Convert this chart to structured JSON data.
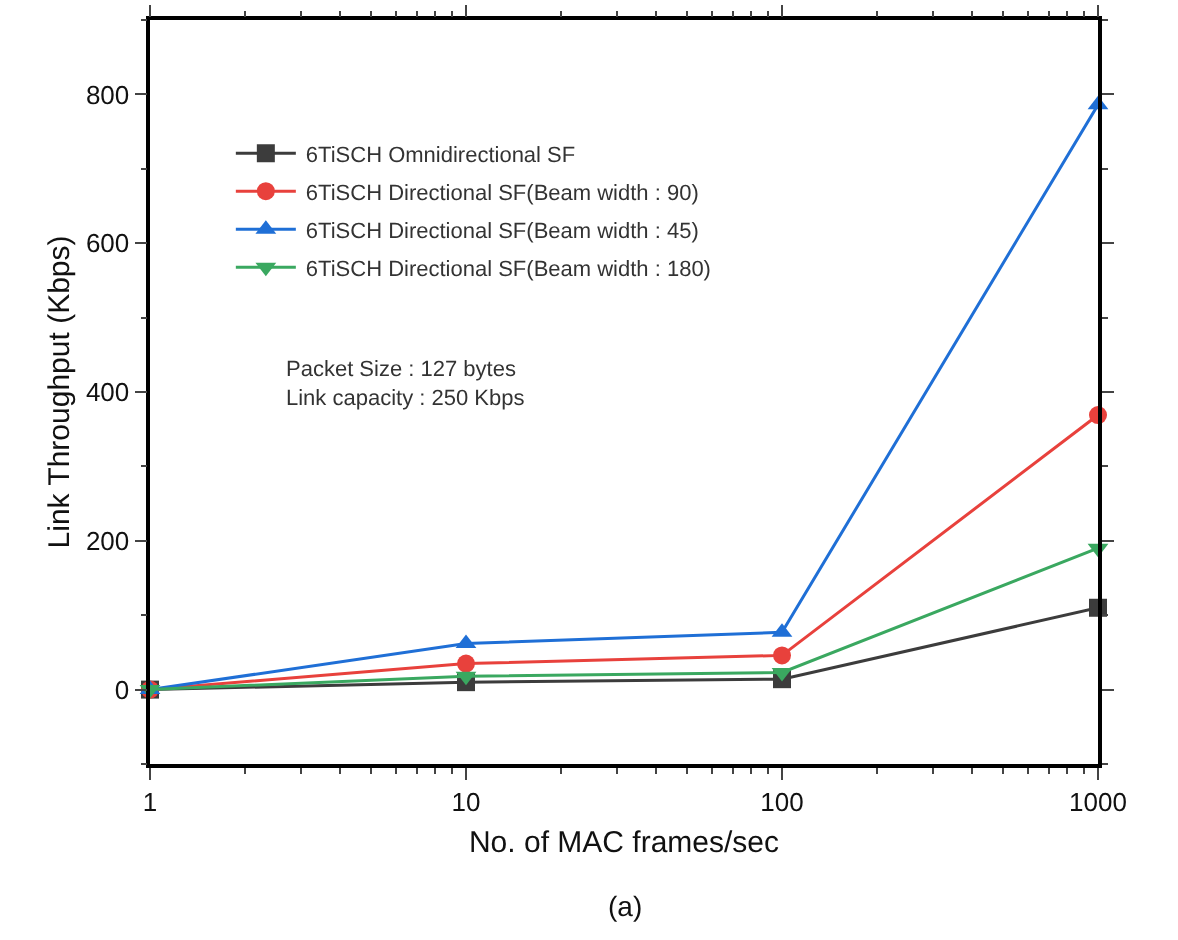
{
  "chart_data": {
    "type": "line",
    "xlabel": "No. of MAC frames/sec",
    "ylabel": "Link Throughput (Kbps)",
    "x": [
      1,
      10,
      100,
      1000
    ],
    "log": "x",
    "xlim": [
      1,
      1000
    ],
    "xticks": [
      1,
      10,
      100,
      1000
    ],
    "ylim": [
      -100,
      900
    ],
    "yticks": [
      0,
      200,
      400,
      600,
      800
    ],
    "grid": false,
    "legend": "top left",
    "line_style": "solid",
    "annotations": [
      "Packet Size : 127 bytes\nLink capacity : 250 Kbps",
      "(a)"
    ],
    "series": [
      {
        "name": "6TiSCH Omnidirectional SF",
        "color": "#3c3c3c",
        "marker": "square",
        "values": [
          0,
          10,
          14,
          110
        ]
      },
      {
        "name": "6TiSCH Directional SF(Beam width : 90)",
        "color": "#e8413c",
        "marker": "circle",
        "values": [
          0,
          35,
          46,
          369
        ]
      },
      {
        "name": "6TiSCH Directional SF(Beam width : 45)",
        "color": "#1f6fd6",
        "marker": "triangle",
        "values": [
          0,
          62,
          77,
          786
        ]
      },
      {
        "name": "6TiSCH Directional SF(Beam width : 180)",
        "color": "#3aa860",
        "marker": "triangle-down",
        "values": [
          0,
          18,
          23,
          190
        ]
      }
    ]
  }
}
